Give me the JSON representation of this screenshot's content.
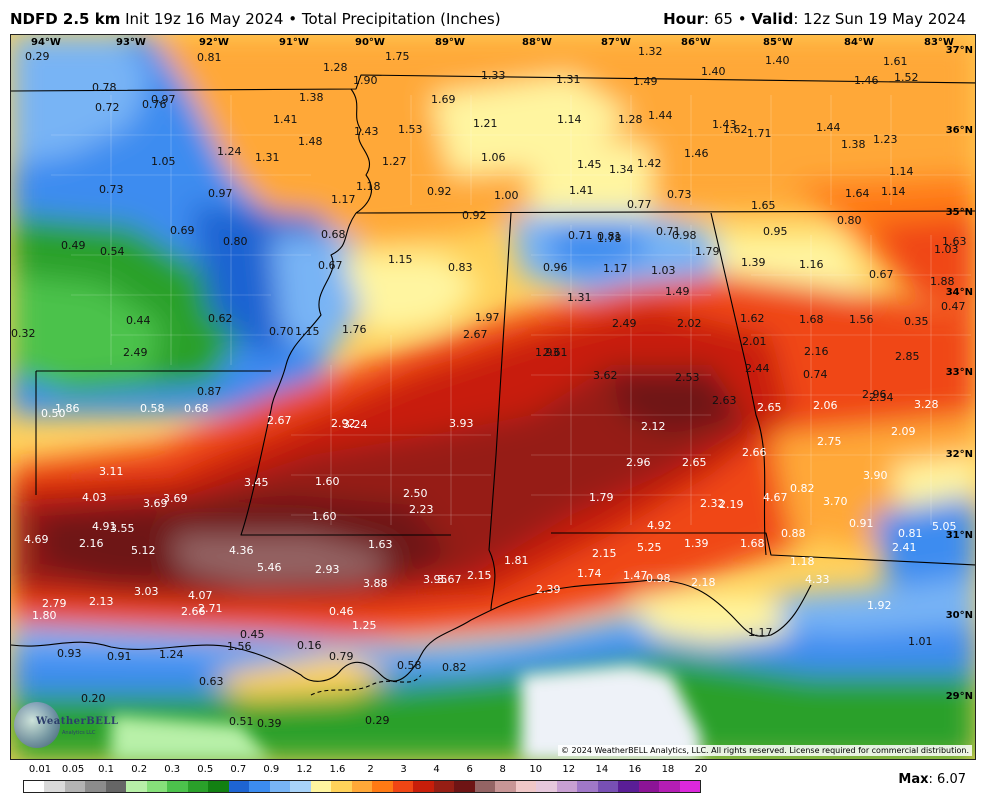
{
  "header": {
    "model": "NDFD 2.5 km",
    "init": "Init 19z 16 May 2024",
    "bullet": "•",
    "product": "Total Precipitation (Inches)",
    "hour_label": "Hour",
    "hour_value": ": 65",
    "valid_label": "Valid",
    "valid_value": ": 12z Sun 19 May 2024"
  },
  "map": {
    "longitudes": [
      "94°W",
      "93°W",
      "92°W",
      "91°W",
      "90°W",
      "89°W",
      "88°W",
      "87°W",
      "86°W",
      "85°W",
      "84°W",
      "83°W"
    ],
    "latitudes": [
      "37°N",
      "36°N",
      "35°N",
      "34°N",
      "33°N",
      "32°N",
      "31°N",
      "30°N",
      "29°N"
    ],
    "values": [
      "0.29",
      "0.81",
      "1.28",
      "1.75",
      "1.33",
      "1.31",
      "1.32",
      "1.49",
      "1.40",
      "1.40",
      "1.61",
      "1.52",
      "1.46",
      "1.90",
      "0.78",
      "0.72",
      "0.76",
      "0.97",
      "1.38",
      "1.69",
      "1.21",
      "1.14",
      "1.28",
      "1.44",
      "1.43",
      "1.62",
      "1.71",
      "1.44",
      "1.38",
      "1.23",
      "1.41",
      "1.43",
      "1.53",
      "1.48",
      "1.24",
      "1.31",
      "1.05",
      "1.27",
      "1.06",
      "1.45",
      "1.34",
      "1.42",
      "1.46",
      "1.14",
      "0.73",
      "0.97",
      "1.18",
      "0.92",
      "1.00",
      "1.41",
      "0.77",
      "0.73",
      "1.64",
      "1.14",
      "1.65",
      "1.17",
      "0.92",
      "0.80",
      "0.69",
      "0.80",
      "0.49",
      "0.54",
      "0.68",
      "0.67",
      "0.71",
      "0.81",
      "0.98",
      "0.95",
      "1.79",
      "1.63",
      "1.03",
      "1.15",
      "0.83",
      "0.96",
      "1.17",
      "1.03",
      "1.39",
      "1.16",
      "0.67",
      "0.71",
      "1.78",
      "1.88",
      "1.49",
      "1.31",
      "0.47",
      "0.44",
      "0.62",
      "0.70",
      "1.15",
      "1.76",
      "1.97",
      "2.67",
      "2.49",
      "2.61",
      "2.02",
      "1.62",
      "1.68",
      "1.56",
      "0.35",
      "0.32",
      "2.49",
      "1.93",
      "2.01",
      "2.16",
      "2.85",
      "3.62",
      "2.53",
      "2.44",
      "0.74",
      "0.87",
      "0.68",
      "0.58",
      "0.50",
      "1.86",
      "2.67",
      "2.92",
      "3.24",
      "3.93",
      "2.63",
      "2.65",
      "2.06",
      "2.96",
      "2.34",
      "3.28",
      "2.12",
      "2.09",
      "2.75",
      "2.96",
      "2.65",
      "2.66",
      "3.11",
      "3.45",
      "1.60",
      "3.90",
      "4.03",
      "3.69",
      "3.69",
      "2.50",
      "1.79",
      "0.82",
      "3.70",
      "2.23",
      "2.32",
      "2.19",
      "4.67",
      "4.91",
      "3.55",
      "1.60",
      "0.91",
      "0.81",
      "5.05",
      "4.69",
      "2.16",
      "4.92",
      "5.12",
      "4.36",
      "1.63",
      "1.39",
      "1.68",
      "0.88",
      "2.41",
      "2.15",
      "5.25",
      "5.46",
      "2.93",
      "1.81",
      "1.18",
      "4.33",
      "3.03",
      "4.07",
      "3.88",
      "3.95",
      "3.67",
      "2.15",
      "1.74",
      "1.47",
      "0.98",
      "2.18",
      "2.39",
      "2.79",
      "2.13",
      "2.66",
      "2.71",
      "0.46",
      "1.92",
      "1.80",
      "1.25",
      "0.45",
      "1.17",
      "1.56",
      "0.16",
      "1.01",
      "0.93",
      "0.91",
      "1.24",
      "0.79",
      "0.58",
      "0.82",
      "0.63",
      "0.20",
      "0.51",
      "0.39",
      "0.29"
    ],
    "copyright": "© 2024 WeatherBELL Analytics, LLC. All rights reserved. License required for commercial distribution.",
    "logo_text": "WeatherBELL",
    "logo_sub": "Analytics LLC"
  },
  "colorbar": {
    "labels": [
      "0.01",
      "0.05",
      "0.1",
      "0.2",
      "0.3",
      "0.5",
      "0.7",
      "0.9",
      "1.2",
      "1.6",
      "2",
      "3",
      "4",
      "6",
      "8",
      "10",
      "12",
      "14",
      "16",
      "18",
      "20"
    ],
    "colors": [
      "#ffffff",
      "#d9d9d9",
      "#b3b3b3",
      "#8c8c8c",
      "#666666",
      "#b8f0a8",
      "#86e07a",
      "#4cc24c",
      "#2aa02a",
      "#128012",
      "#1e64d2",
      "#3c8cf0",
      "#78b4f5",
      "#a8d2f8",
      "#fff5a0",
      "#ffd25a",
      "#ffa838",
      "#ff7a14",
      "#f04614",
      "#c81e0a",
      "#961e14",
      "#6e1414",
      "#946464",
      "#c89696",
      "#f0c8c8",
      "#e6c8dc",
      "#c8a0d2",
      "#a078c8",
      "#7850b4",
      "#5a1e96",
      "#8c1496",
      "#b41eb4",
      "#dc28dc"
    ]
  },
  "max": {
    "label": "Max",
    "value": ": 6.07"
  }
}
